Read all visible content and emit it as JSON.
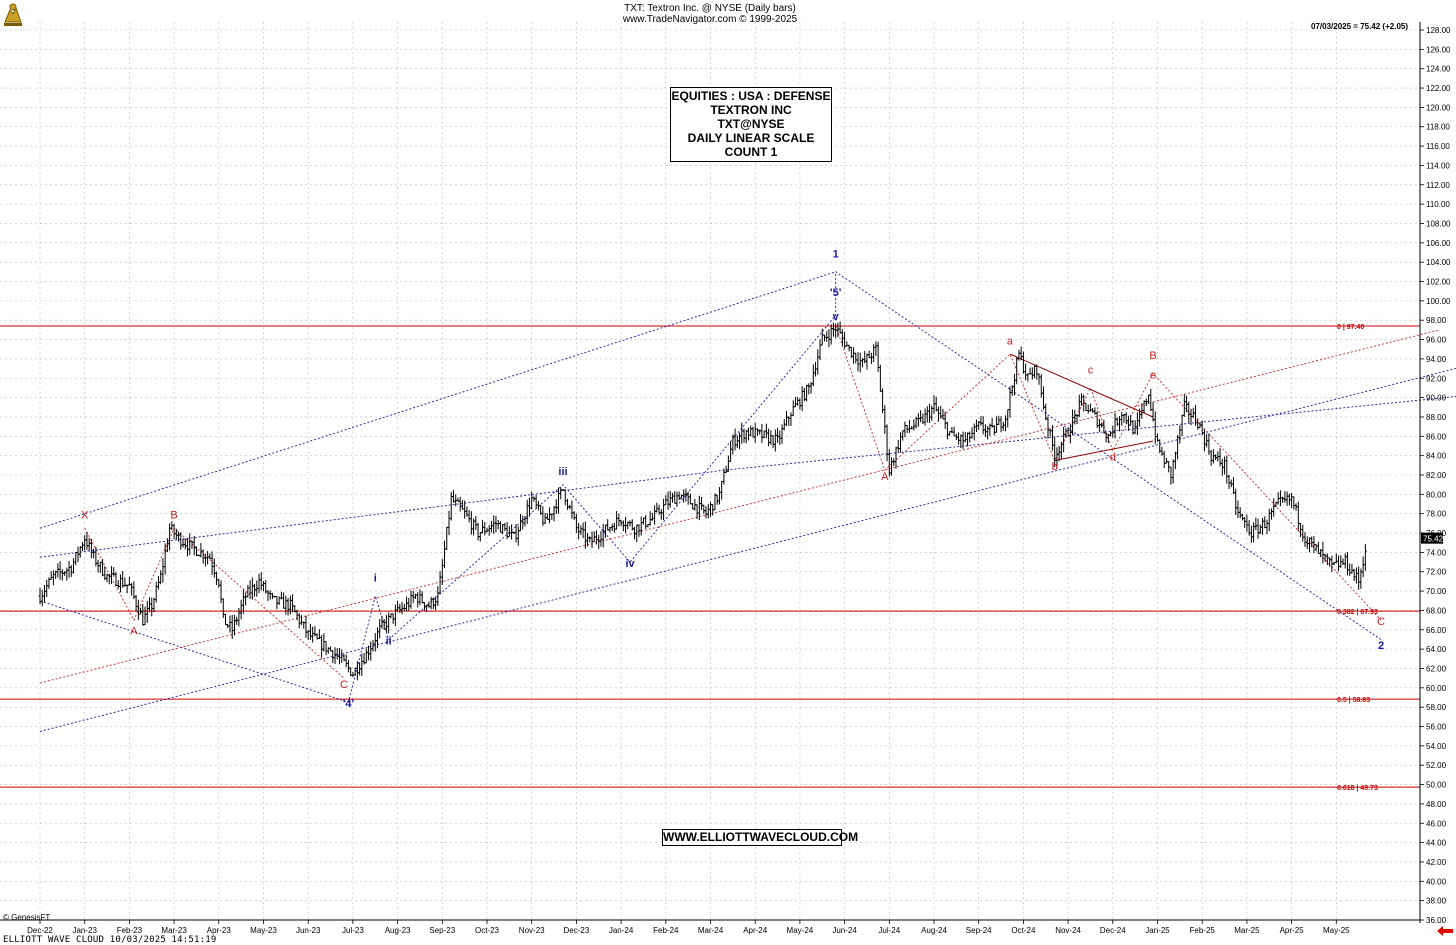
{
  "header": {
    "title": "TXT:  Textron Inc. @ NYSE  (Daily bars)",
    "copyright": "www.TradeNavigator.com © 1999-2025",
    "last_reading": "07/03/2025 = 75.42 (+2.05)"
  },
  "info_box": {
    "lines": [
      "EQUITIES : USA : DEFENSE",
      "TEXTRON INC",
      "TXT@NYSE",
      "DAILY LINEAR SCALE",
      "COUNT 1"
    ]
  },
  "watermark": "WWW.ELLIOTTWAVECLOUD.COM",
  "footer": {
    "left": "ELLIOTT WAVE CLOUD   10/03/2025 14:51:19",
    "genesis": "© GenesisFT"
  },
  "colors": {
    "price_bars": "#000000",
    "fib_lines": "#cc0000",
    "blue_wave": "#1a1aa0",
    "red_wave": "#cc0000",
    "grid": "#bbbbbb",
    "price_tag_bg": "#000000"
  },
  "chart_data": {
    "type": "ohlc",
    "scale": "linear",
    "y_axis": {
      "side": "right",
      "range": [
        36,
        128
      ],
      "tick_step": 2
    },
    "x_axis": {
      "labels": [
        "Dec-22",
        "Jan-23",
        "Feb-23",
        "Mar-23",
        "Apr-23",
        "May-23",
        "Jun-23",
        "Jul-23",
        "Aug-23",
        "Sep-23",
        "Oct-23",
        "Nov-23",
        "Dec-23",
        "Jan-24",
        "Feb-24",
        "Mar-24",
        "Apr-24",
        "May-24",
        "Jun-24",
        "Jul-24",
        "Aug-24",
        "Sep-24",
        "Oct-24",
        "Nov-24",
        "Dec-24",
        "Jan-25",
        "Feb-25",
        "Mar-25",
        "Apr-25",
        "May-25"
      ]
    },
    "last_price": {
      "value": 75.42,
      "label": "75.42"
    },
    "price_path": [
      [
        0,
        69.5
      ],
      [
        0.3,
        71.5
      ],
      [
        0.7,
        72.5
      ],
      [
        1.0,
        75.5
      ],
      [
        1.2,
        73.5
      ],
      [
        1.5,
        71.5
      ],
      [
        1.8,
        71.0
      ],
      [
        2.0,
        70.5
      ],
      [
        2.3,
        67.0
      ],
      [
        2.5,
        68.5
      ],
      [
        2.7,
        71.5
      ],
      [
        2.9,
        76.5
      ],
      [
        3.1,
        75.5
      ],
      [
        3.4,
        74.5
      ],
      [
        3.6,
        74.0
      ],
      [
        3.8,
        73.5
      ],
      [
        4.0,
        71.0
      ],
      [
        4.1,
        67.0
      ],
      [
        4.3,
        66.0
      ],
      [
        4.6,
        69.5
      ],
      [
        4.9,
        71.0
      ],
      [
        5.2,
        69.0
      ],
      [
        5.6,
        68.5
      ],
      [
        5.8,
        67.0
      ],
      [
        6.0,
        65.5
      ],
      [
        6.3,
        64.5
      ],
      [
        6.6,
        63.5
      ],
      [
        6.9,
        62.0
      ],
      [
        7.0,
        61.5
      ],
      [
        7.3,
        63.5
      ],
      [
        7.6,
        66.0
      ],
      [
        7.9,
        67.5
      ],
      [
        8.2,
        68.5
      ],
      [
        8.4,
        69.5
      ],
      [
        8.7,
        68.5
      ],
      [
        8.9,
        69.5
      ],
      [
        9.0,
        72.5
      ],
      [
        9.2,
        79.5
      ],
      [
        9.5,
        78.0
      ],
      [
        9.8,
        76.0
      ],
      [
        10.2,
        77.0
      ],
      [
        10.6,
        75.5
      ],
      [
        11.0,
        79.5
      ],
      [
        11.3,
        77.0
      ],
      [
        11.7,
        80.5
      ],
      [
        12.0,
        76.5
      ],
      [
        12.3,
        75.0
      ],
      [
        12.7,
        76.5
      ],
      [
        13.0,
        77.5
      ],
      [
        13.3,
        76.5
      ],
      [
        13.7,
        77.5
      ],
      [
        14.0,
        79.0
      ],
      [
        14.3,
        80.0
      ],
      [
        14.6,
        79.0
      ],
      [
        14.9,
        78.0
      ],
      [
        15.2,
        80.0
      ],
      [
        15.5,
        85.5
      ],
      [
        15.8,
        86.5
      ],
      [
        16.2,
        86.0
      ],
      [
        16.5,
        85.5
      ],
      [
        16.8,
        88.5
      ],
      [
        17.2,
        91.0
      ],
      [
        17.5,
        96.0
      ],
      [
        17.8,
        97.2
      ],
      [
        18.1,
        95.0
      ],
      [
        18.4,
        93.5
      ],
      [
        18.7,
        95.0
      ],
      [
        19.0,
        82.5
      ],
      [
        19.3,
        86.5
      ],
      [
        19.7,
        87.5
      ],
      [
        20.0,
        89.0
      ],
      [
        20.4,
        86.0
      ],
      [
        20.7,
        85.5
      ],
      [
        21.0,
        87.0
      ],
      [
        21.3,
        86.5
      ],
      [
        21.6,
        88.0
      ],
      [
        21.9,
        94.5
      ],
      [
        22.1,
        92.0
      ],
      [
        22.3,
        93.0
      ],
      [
        22.5,
        88.0
      ],
      [
        22.7,
        84.0
      ],
      [
        23.0,
        86.5
      ],
      [
        23.3,
        89.5
      ],
      [
        23.6,
        88.0
      ],
      [
        23.9,
        86.0
      ],
      [
        24.2,
        88.5
      ],
      [
        24.5,
        86.5
      ],
      [
        24.8,
        90.5
      ],
      [
        25.0,
        85.0
      ],
      [
        25.3,
        82.0
      ],
      [
        25.6,
        89.0
      ],
      [
        25.9,
        87.5
      ],
      [
        26.2,
        84.0
      ],
      [
        26.5,
        83.0
      ],
      [
        26.8,
        78.0
      ],
      [
        27.1,
        76.0
      ],
      [
        27.4,
        77.0
      ],
      [
        27.7,
        79.0
      ],
      [
        28.0,
        79.5
      ],
      [
        28.3,
        75.5
      ],
      [
        28.6,
        74.0
      ],
      [
        28.9,
        72.5
      ],
      [
        29.2,
        73.0
      ],
      [
        29.5,
        71.0
      ],
      [
        29.7,
        75.42
      ]
    ],
    "horizontal_lines": [
      {
        "value": 97.4,
        "label": "0 | 97.40"
      },
      {
        "value": 67.93,
        "label": "0.382 | 67.93"
      },
      {
        "value": 58.83,
        "label": "0.5 | 58.83"
      },
      {
        "value": 49.73,
        "label": "0.618 | 49.73"
      }
    ],
    "wave_labels": [
      {
        "text": "X",
        "color": "red",
        "at": [
          1.0,
          77.5
        ]
      },
      {
        "text": "A",
        "color": "red",
        "at": [
          2.1,
          65.5
        ]
      },
      {
        "text": "B",
        "color": "red",
        "at": [
          3.0,
          77.5
        ]
      },
      {
        "text": "C",
        "color": "red",
        "at": [
          6.8,
          60.0
        ]
      },
      {
        "text": "'4'",
        "color": "blue",
        "at": [
          6.9,
          58.0
        ]
      },
      {
        "text": "i",
        "color": "blue",
        "at": [
          7.5,
          71.0
        ]
      },
      {
        "text": "ii",
        "color": "blue",
        "at": [
          7.8,
          64.5
        ]
      },
      {
        "text": "iii",
        "color": "blue",
        "at": [
          11.7,
          82.0
        ]
      },
      {
        "text": "iv",
        "color": "blue",
        "at": [
          13.2,
          72.5
        ]
      },
      {
        "text": "v",
        "color": "blue",
        "at": [
          17.8,
          98.0
        ]
      },
      {
        "text": "'5'",
        "color": "blue",
        "at": [
          17.8,
          100.5
        ]
      },
      {
        "text": "1",
        "color": "blue",
        "at": [
          17.8,
          104.5
        ]
      },
      {
        "text": "A",
        "color": "red",
        "at": [
          18.9,
          81.5
        ]
      },
      {
        "text": "a",
        "color": "red",
        "at": [
          21.7,
          95.5
        ]
      },
      {
        "text": "b",
        "color": "red",
        "at": [
          22.7,
          82.5
        ]
      },
      {
        "text": "c",
        "color": "red",
        "at": [
          23.5,
          92.5
        ]
      },
      {
        "text": "d",
        "color": "red",
        "at": [
          24.0,
          83.5
        ]
      },
      {
        "text": "B",
        "color": "red",
        "at": [
          24.9,
          94.0
        ]
      },
      {
        "text": "e",
        "color": "red",
        "at": [
          24.9,
          92.0
        ]
      },
      {
        "text": "C",
        "color": "red",
        "at": [
          30.0,
          66.5
        ]
      },
      {
        "text": "2",
        "color": "blue",
        "at": [
          30.0,
          64.0
        ]
      }
    ],
    "wave_paths": [
      {
        "color": "red",
        "points": [
          [
            1.0,
            76.5
          ],
          [
            2.1,
            67.0
          ],
          [
            3.0,
            76.5
          ],
          [
            4.6,
            70.0
          ],
          [
            6.8,
            61.0
          ]
        ]
      },
      {
        "color": "blue",
        "points": [
          [
            0,
            69.0
          ],
          [
            6.9,
            58.5
          ],
          [
            7.5,
            69.5
          ],
          [
            7.8,
            65.0
          ],
          [
            11.7,
            81.0
          ],
          [
            13.2,
            73.0
          ],
          [
            17.8,
            98.5
          ],
          [
            17.8,
            103.0
          ],
          [
            30.0,
            65.0
          ]
        ]
      },
      {
        "color": "red",
        "points": [
          [
            17.8,
            97.4
          ],
          [
            18.9,
            82.5
          ],
          [
            21.7,
            94.5
          ],
          [
            22.7,
            83.5
          ],
          [
            23.5,
            91.0
          ],
          [
            24.0,
            84.5
          ],
          [
            24.9,
            92.5
          ],
          [
            30.0,
            67.0
          ]
        ]
      },
      {
        "color": "blue",
        "points": [
          [
            0,
            76.5
          ],
          [
            17.8,
            103.0
          ]
        ]
      },
      {
        "color": "blue",
        "points": [
          [
            0,
            55.5
          ],
          [
            32.5,
            94.0
          ]
        ]
      },
      {
        "color": "blue",
        "points": [
          [
            0,
            73.5
          ],
          [
            15.3,
            82.5
          ],
          [
            32.5,
            90.5
          ]
        ]
      },
      {
        "color": "red",
        "points": [
          [
            0,
            60.5
          ],
          [
            31.3,
            97.0
          ]
        ]
      },
      {
        "color": "darkred",
        "points": [
          [
            21.7,
            94.5
          ],
          [
            24.9,
            88.0
          ]
        ]
      },
      {
        "color": "darkred",
        "points": [
          [
            22.7,
            83.5
          ],
          [
            24.9,
            85.5
          ]
        ]
      }
    ],
    "grid": true
  }
}
